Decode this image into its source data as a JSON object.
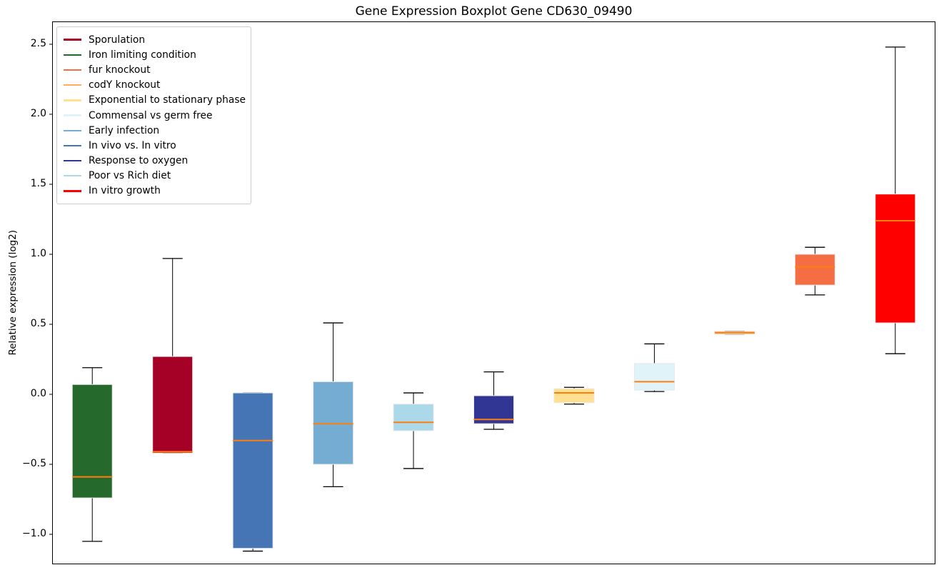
{
  "chart_data": {
    "type": "boxplot",
    "title": "Gene Expression Boxplot Gene CD630_09490",
    "ylabel": "Relative expression (log2)",
    "xlabel": "",
    "ylim": [
      -1.214,
      2.663
    ],
    "grid": false,
    "frame": true,
    "x_tick_labels": [],
    "yticks": [
      {
        "value": 2.5,
        "label": "2.5"
      },
      {
        "value": 2.0,
        "label": "2.0"
      },
      {
        "value": 1.5,
        "label": "1.5"
      },
      {
        "value": 1.0,
        "label": "1.0"
      },
      {
        "value": 0.5,
        "label": "0.5"
      },
      {
        "value": 0.0,
        "label": "0.0"
      },
      {
        "value": -0.5,
        "label": "−0.5"
      },
      {
        "value": -1.0,
        "label": "−1.0"
      }
    ],
    "median_color": "#ff7f0e",
    "whisker_color": "#000000",
    "box_edge_color": "#e8e8e8",
    "series": [
      {
        "name": "Iron limiting condition",
        "color": "#26692c",
        "whislo": -1.05,
        "q1": -0.74,
        "med": -0.59,
        "q3": 0.07,
        "whishi": 0.19
      },
      {
        "name": "Sporulation",
        "color": "#a50026",
        "whislo": -0.42,
        "q1": -0.42,
        "med": -0.41,
        "q3": 0.27,
        "whishi": 0.97
      },
      {
        "name": "In vivo vs. In vitro",
        "color": "#4575b4",
        "whislo": -1.12,
        "q1": -1.1,
        "med": -0.33,
        "q3": 0.01,
        "whishi": 0.01
      },
      {
        "name": "Early infection",
        "color": "#74add1",
        "whislo": -0.66,
        "q1": -0.5,
        "med": -0.21,
        "q3": 0.09,
        "whishi": 0.51
      },
      {
        "name": "Poor vs Rich diet",
        "color": "#abd9e9",
        "whislo": -0.53,
        "q1": -0.26,
        "med": -0.2,
        "q3": -0.07,
        "whishi": 0.01
      },
      {
        "name": "Response to oxygen",
        "color": "#313695",
        "whislo": -0.25,
        "q1": -0.21,
        "med": -0.18,
        "q3": -0.01,
        "whishi": 0.16
      },
      {
        "name": "Exponential to stationary phase",
        "color": "#fee090",
        "whislo": -0.07,
        "q1": -0.06,
        "med": 0.01,
        "q3": 0.04,
        "whishi": 0.05
      },
      {
        "name": "Commensal vs germ free",
        "color": "#e0f3f8",
        "whislo": 0.02,
        "q1": 0.03,
        "med": 0.09,
        "q3": 0.22,
        "whishi": 0.36
      },
      {
        "name": "codY knockout",
        "color": "#fdae61",
        "whislo": 0.43,
        "q1": 0.43,
        "med": 0.44,
        "q3": 0.45,
        "whishi": 0.45
      },
      {
        "name": "fur knockout",
        "color": "#f46d43",
        "whislo": 0.71,
        "q1": 0.78,
        "med": 0.91,
        "q3": 1.0,
        "whishi": 1.05
      },
      {
        "name": "In vitro growth",
        "color": "#ff0000",
        "whislo": 0.29,
        "q1": 0.51,
        "med": 1.24,
        "q3": 1.43,
        "whishi": 2.48
      }
    ],
    "legend": {
      "position": "upper left",
      "entries": [
        {
          "label": "Sporulation",
          "color": "#a50026"
        },
        {
          "label": "Iron limiting condition",
          "color": "#26692c"
        },
        {
          "label": "fur knockout",
          "color": "#f46d43"
        },
        {
          "label": "codY knockout",
          "color": "#fdae61"
        },
        {
          "label": "Exponential to stationary phase",
          "color": "#fee090"
        },
        {
          "label": "Commensal vs germ free",
          "color": "#e0f3f8"
        },
        {
          "label": "Early infection",
          "color": "#74add1"
        },
        {
          "label": "In vivo vs. In vitro",
          "color": "#4575b4"
        },
        {
          "label": "Response to oxygen",
          "color": "#313695"
        },
        {
          "label": "Poor vs Rich diet",
          "color": "#abd9e9"
        },
        {
          "label": "In vitro growth",
          "color": "#ff0000"
        }
      ]
    }
  }
}
